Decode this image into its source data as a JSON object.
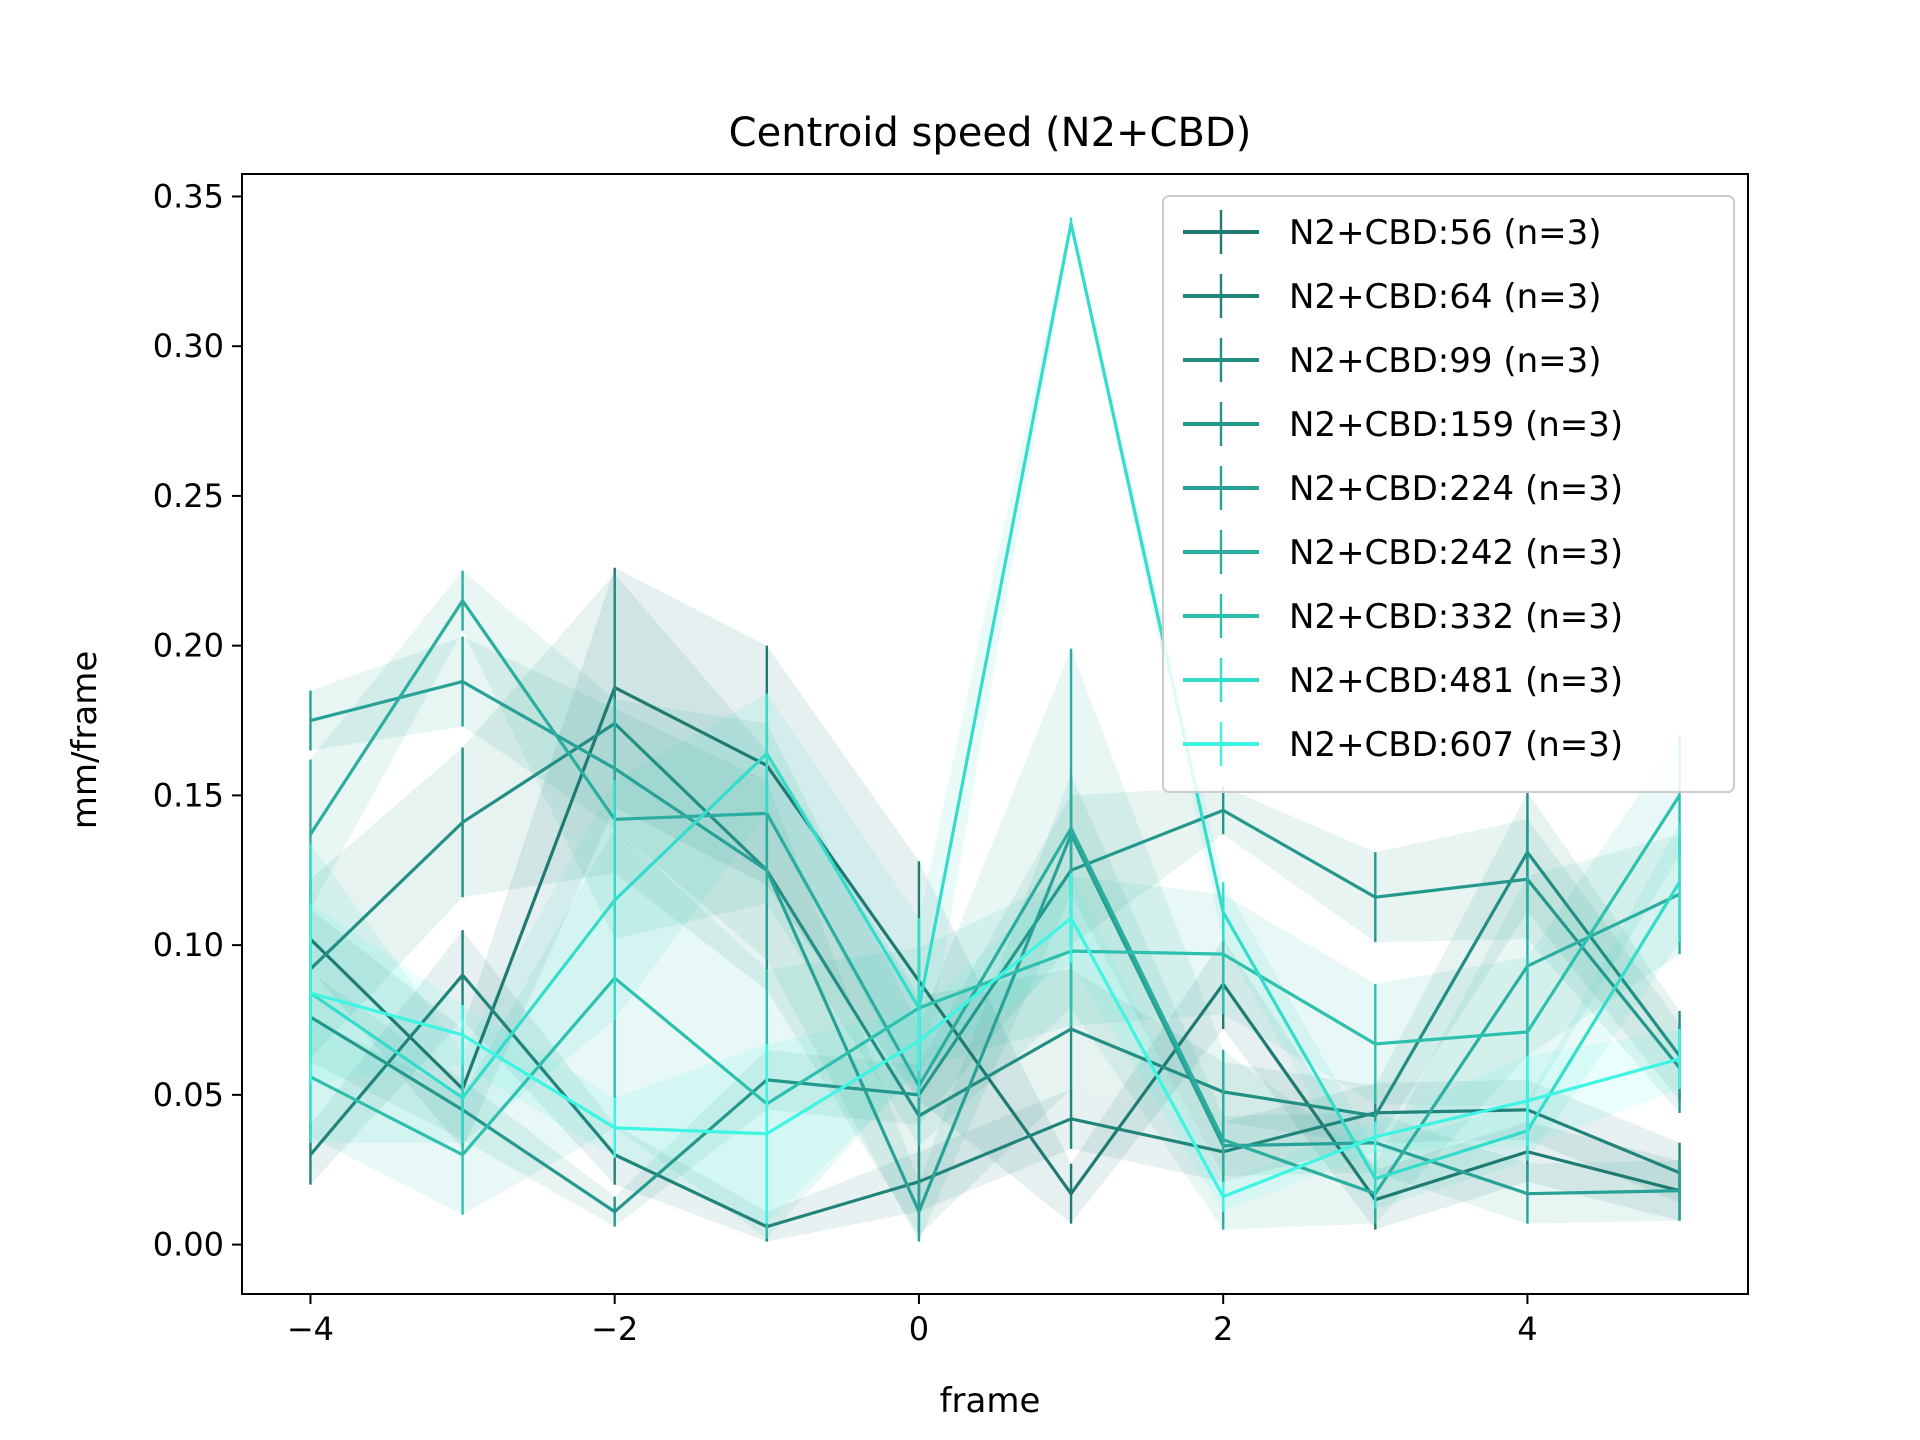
{
  "chart_data": {
    "type": "line",
    "title": "Centroid speed (N2+CBD)",
    "xlabel": "frame",
    "ylabel": "mm/frame",
    "xlim": [
      -4.45,
      5.45
    ],
    "ylim": [
      -0.0165,
      0.3575
    ],
    "x": [
      -4,
      -3,
      -2,
      -1,
      0,
      1,
      2,
      3,
      4,
      5
    ],
    "x_ticks": [
      -4,
      -2,
      0,
      2,
      4
    ],
    "x_tick_labels": [
      "−4",
      "−2",
      "0",
      "2",
      "4"
    ],
    "y_ticks": [
      0.0,
      0.05,
      0.1,
      0.15,
      0.2,
      0.25,
      0.3,
      0.35
    ],
    "y_tick_labels": [
      "0.00",
      "0.05",
      "0.10",
      "0.15",
      "0.20",
      "0.25",
      "0.30",
      "0.35"
    ],
    "grid": false,
    "legend_position": "top-right",
    "series": [
      {
        "name": "N2+CBD:56 (n=3)",
        "color": "#1f7a72",
        "values": [
          0.102,
          0.052,
          0.186,
          0.16,
          0.088,
          0.017,
          0.087,
          0.015,
          0.031,
          0.018
        ],
        "errors": [
          0.01,
          0.02,
          0.04,
          0.04,
          0.04,
          0.01,
          0.015,
          0.01,
          0.01,
          0.01
        ]
      },
      {
        "name": "N2+CBD:64 (n=3)",
        "color": "#21847b",
        "values": [
          0.03,
          0.09,
          0.03,
          0.006,
          0.021,
          0.042,
          0.031,
          0.044,
          0.045,
          0.024
        ],
        "errors": [
          0.01,
          0.015,
          0.01,
          0.005,
          0.01,
          0.01,
          0.01,
          0.01,
          0.01,
          0.01
        ]
      },
      {
        "name": "N2+CBD:99 (n=3)",
        "color": "#238e84",
        "values": [
          0.092,
          0.141,
          0.174,
          0.125,
          0.043,
          0.072,
          0.051,
          0.043,
          0.131,
          0.063
        ],
        "errors": [
          0.03,
          0.025,
          0.05,
          0.04,
          0.04,
          0.02,
          0.01,
          0.01,
          0.02,
          0.015
        ]
      },
      {
        "name": "N2+CBD:159 (n=3)",
        "color": "#25988d",
        "values": [
          0.076,
          0.045,
          0.011,
          0.055,
          0.05,
          0.125,
          0.145,
          0.116,
          0.122,
          0.059
        ],
        "errors": [
          0.015,
          0.01,
          0.005,
          0.01,
          0.01,
          0.025,
          0.008,
          0.015,
          0.02,
          0.015
        ]
      },
      {
        "name": "N2+CBD:224 (n=3)",
        "color": "#28a296",
        "values": [
          0.175,
          0.188,
          0.159,
          0.125,
          0.011,
          0.137,
          0.033,
          0.034,
          0.017,
          0.018
        ],
        "errors": [
          0.01,
          0.015,
          0.02,
          0.03,
          0.01,
          0.02,
          0.01,
          0.01,
          0.01,
          0.01
        ]
      },
      {
        "name": "N2+CBD:242 (n=3)",
        "color": "#2bae9f",
        "values": [
          0.137,
          0.215,
          0.142,
          0.144,
          0.053,
          0.139,
          0.035,
          0.017,
          0.093,
          0.117
        ],
        "errors": [
          0.025,
          0.01,
          0.04,
          0.03,
          0.02,
          0.06,
          0.03,
          0.01,
          0.03,
          0.02
        ]
      },
      {
        "name": "N2+CBD:332 (n=3)",
        "color": "#2ec0ae",
        "values": [
          0.056,
          0.03,
          0.089,
          0.047,
          0.079,
          0.098,
          0.097,
          0.067,
          0.071,
          0.15
        ],
        "errors": [
          0.02,
          0.02,
          0.05,
          0.045,
          0.02,
          0.025,
          0.02,
          0.02,
          0.025,
          0.02
        ]
      },
      {
        "name": "N2+CBD:481 (n=3)",
        "color": "#33dccb",
        "values": [
          0.084,
          0.049,
          0.115,
          0.164,
          0.079,
          0.341,
          0.111,
          0.022,
          0.038,
          0.121
        ],
        "errors": [
          0.05,
          0.015,
          0.04,
          0.02,
          0.03,
          0.002,
          0.01,
          0.01,
          0.01,
          0.02
        ]
      },
      {
        "name": "N2+CBD:607 (n=3)",
        "color": "#3ef5e4",
        "values": [
          0.084,
          0.07,
          0.039,
          0.037,
          0.068,
          0.109,
          0.016,
          0.036,
          0.048,
          0.062
        ],
        "errors": [
          0.03,
          0.01,
          0.01,
          0.03,
          0.01,
          0.015,
          0.005,
          0.005,
          0.015,
          0.01
        ]
      }
    ]
  }
}
